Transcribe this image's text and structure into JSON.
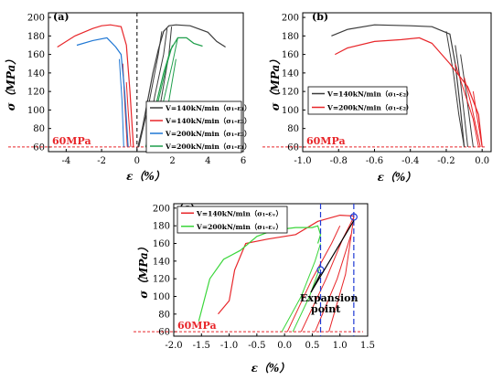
{
  "chart_data": [
    {
      "panel_label": "(a)",
      "type": "line",
      "xlabel": "ε（%）",
      "ylabel": "σ（MPa）",
      "xlim": [
        -5,
        6
      ],
      "ylim": [
        55,
        205
      ],
      "xticks": [
        -4,
        -2,
        0,
        2,
        4,
        6
      ],
      "yticks": [
        60,
        80,
        100,
        120,
        140,
        160,
        180,
        200
      ],
      "threshold": {
        "value": 60,
        "label": "60MPa",
        "color": "#e8262a"
      },
      "zero_line": true,
      "legend_position": "bottom-right",
      "series": [
        {
          "name": "V=140kN/min（σ₁-ε₁）",
          "color": "#3b3b3b",
          "points": [
            [
              0.05,
              60
            ],
            [
              0.3,
              80
            ],
            [
              0.6,
              110
            ],
            [
              0.9,
              140
            ],
            [
              1.2,
              165
            ],
            [
              1.5,
              185
            ],
            [
              1.8,
              191
            ],
            [
              2.2,
              192
            ],
            [
              3.0,
              191
            ],
            [
              4.0,
              184
            ],
            [
              4.5,
              174
            ],
            [
              5.0,
              168
            ]
          ],
          "loops": [
            [
              [
                0.1,
                60
              ],
              [
                0.7,
                110
              ],
              [
                1.2,
                160
              ],
              [
                1.4,
                185
              ]
            ],
            [
              [
                0.5,
                60
              ],
              [
                1.0,
                115
              ],
              [
                1.5,
                160
              ],
              [
                1.7,
                188
              ]
            ],
            [
              [
                0.9,
                60
              ],
              [
                1.4,
                115
              ],
              [
                1.8,
                160
              ],
              [
                1.95,
                190
              ]
            ]
          ]
        },
        {
          "name": "V=140kN/min（σ₁-ε₃）",
          "color": "#e8262a",
          "points": [
            [
              -4.5,
              168
            ],
            [
              -3.5,
              180
            ],
            [
              -2.5,
              188
            ],
            [
              -2.0,
              191
            ],
            [
              -1.5,
              192
            ],
            [
              -0.9,
              190
            ],
            [
              -0.6,
              170
            ],
            [
              -0.4,
              120
            ],
            [
              -0.2,
              60
            ]
          ],
          "loops": [
            [
              [
                -0.8,
                150
              ],
              [
                -0.7,
                110
              ],
              [
                -0.55,
                60
              ]
            ],
            [
              [
                -0.6,
                130
              ],
              [
                -0.5,
                100
              ],
              [
                -0.35,
                60
              ]
            ]
          ]
        },
        {
          "name": "V=200kN/min（σ₁-ε₃）",
          "color": "#1f77d4",
          "points": [
            [
              -3.4,
              170
            ],
            [
              -2.5,
              175
            ],
            [
              -1.7,
              178
            ],
            [
              -1.2,
              168
            ],
            [
              -0.9,
              160
            ],
            [
              -0.7,
              120
            ],
            [
              -0.5,
              60
            ]
          ],
          "loops": [
            [
              [
                -1.0,
                155
              ],
              [
                -0.85,
                110
              ],
              [
                -0.75,
                60
              ]
            ]
          ]
        },
        {
          "name": "V=200kN/min（σ₁-ε₁）",
          "color": "#1e9e4a",
          "points": [
            [
              0.5,
              60
            ],
            [
              1.0,
              100
            ],
            [
              1.5,
              140
            ],
            [
              1.9,
              165
            ],
            [
              2.3,
              178
            ],
            [
              2.8,
              178
            ],
            [
              3.2,
              172
            ],
            [
              3.7,
              169
            ]
          ],
          "loops": [
            [
              [
                0.7,
                60
              ],
              [
                1.2,
                110
              ],
              [
                1.7,
                150
              ],
              [
                2.0,
                170
              ]
            ],
            [
              [
                1.0,
                60
              ],
              [
                1.5,
                110
              ],
              [
                2.0,
                150
              ],
              [
                2.3,
                178
              ]
            ],
            [
              [
                1.3,
                60
              ],
              [
                1.8,
                110
              ],
              [
                2.2,
                155
              ]
            ]
          ]
        }
      ]
    },
    {
      "panel_label": "(b)",
      "type": "line",
      "xlabel": "ε（%）",
      "ylabel": "σ（MPa）",
      "xlim": [
        -1.0,
        0.05
      ],
      "ylim": [
        55,
        205
      ],
      "xticks": [
        -1.0,
        -0.8,
        -0.6,
        -0.4,
        -0.2,
        0.0
      ],
      "yticks": [
        60,
        80,
        100,
        120,
        140,
        160,
        180,
        200
      ],
      "threshold": {
        "value": 60,
        "label": "60MPa",
        "color": "#e8262a"
      },
      "legend_position": "middle-left",
      "series": [
        {
          "name": "V=140kN/min（σ₁-ε₂）",
          "color": "#3b3b3b",
          "points": [
            [
              -0.84,
              180
            ],
            [
              -0.75,
              187
            ],
            [
              -0.6,
              192
            ],
            [
              -0.4,
              191
            ],
            [
              -0.28,
              190
            ],
            [
              -0.18,
              182
            ],
            [
              -0.15,
              150
            ],
            [
              -0.12,
              100
            ],
            [
              -0.1,
              60
            ]
          ],
          "loops": [
            [
              [
                -0.2,
                185
              ],
              [
                -0.16,
                140
              ],
              [
                -0.13,
                95
              ],
              [
                -0.1,
                60
              ]
            ],
            [
              [
                -0.15,
                170
              ],
              [
                -0.12,
                130
              ],
              [
                -0.08,
                60
              ]
            ],
            [
              [
                -0.12,
                160
              ],
              [
                -0.09,
                120
              ],
              [
                -0.05,
                60
              ]
            ]
          ]
        },
        {
          "name": "V=200kN/min（σ₁-ε₂）",
          "color": "#e8262a",
          "points": [
            [
              -0.82,
              160
            ],
            [
              -0.75,
              167
            ],
            [
              -0.6,
              174
            ],
            [
              -0.45,
              176
            ],
            [
              -0.35,
              178
            ],
            [
              -0.28,
              172
            ],
            [
              -0.18,
              150
            ],
            [
              -0.08,
              125
            ],
            [
              -0.02,
              95
            ],
            [
              0.0,
              60
            ]
          ],
          "loops": [
            [
              [
                -0.15,
                150
              ],
              [
                -0.1,
                120
              ],
              [
                -0.05,
                90
              ],
              [
                -0.02,
                60
              ]
            ],
            [
              [
                -0.1,
                135
              ],
              [
                -0.06,
                105
              ],
              [
                -0.01,
                60
              ]
            ],
            [
              [
                -0.05,
                120
              ],
              [
                -0.03,
                95
              ],
              [
                0.0,
                60
              ]
            ]
          ]
        }
      ]
    },
    {
      "panel_label": "(c)",
      "type": "line",
      "xlabel": "ε（%）",
      "ylabel": "σ（MPa）",
      "xlim": [
        -2.0,
        1.5
      ],
      "ylim": [
        55,
        205
      ],
      "xticks": [
        -2.0,
        -1.5,
        -1.0,
        -0.5,
        0.0,
        0.5,
        1.0,
        1.5
      ],
      "yticks": [
        60,
        80,
        100,
        120,
        140,
        160,
        180,
        200
      ],
      "threshold": {
        "value": 60,
        "label": "60MPa",
        "color": "#e8262a"
      },
      "legend_position": "top-left",
      "series": [
        {
          "name": "V=140kN/min（σ₁-εᵥ）",
          "color": "#e8262a",
          "points": [
            [
              -1.2,
              80
            ],
            [
              -1.0,
              95
            ],
            [
              -0.9,
              130
            ],
            [
              -0.7,
              160
            ],
            [
              -0.3,
              165
            ],
            [
              0.2,
              170
            ],
            [
              0.6,
              185
            ],
            [
              1.0,
              192
            ],
            [
              1.25,
              191
            ]
          ],
          "loops": [
            [
              [
                0.05,
                60
              ],
              [
                0.5,
                120
              ],
              [
                0.85,
                160
              ],
              [
                1.0,
                180
              ]
            ],
            [
              [
                0.3,
                60
              ],
              [
                0.75,
                120
              ],
              [
                1.05,
                165
              ],
              [
                1.25,
                190
              ]
            ],
            [
              [
                0.55,
                60
              ],
              [
                0.95,
                120
              ],
              [
                1.2,
                170
              ]
            ],
            [
              [
                0.8,
                60
              ],
              [
                1.1,
                125
              ],
              [
                1.25,
                190
              ]
            ]
          ]
        },
        {
          "name": "V=200kN/min（σ₁-εᵥ）",
          "color": "#3ad63a",
          "points": [
            [
              -1.55,
              72
            ],
            [
              -1.35,
              120
            ],
            [
              -1.1,
              142
            ],
            [
              -0.8,
              152
            ],
            [
              -0.5,
              168
            ],
            [
              -0.2,
              175
            ],
            [
              0.2,
              178
            ],
            [
              0.5,
              178
            ],
            [
              0.6,
              180
            ],
            [
              0.65,
              170
            ],
            [
              0.6,
              160
            ]
          ],
          "loops": [
            [
              [
                -0.05,
                60
              ],
              [
                0.3,
                100
              ],
              [
                0.55,
                140
              ],
              [
                0.65,
                160
              ]
            ],
            [
              [
                0.15,
                60
              ],
              [
                0.45,
                100
              ],
              [
                0.65,
                135
              ]
            ]
          ]
        }
      ],
      "vlines": [
        0.65,
        1.25
      ],
      "expansion_points": [
        [
          0.65,
          130
        ],
        [
          1.25,
          190
        ]
      ],
      "annotation": {
        "text_line1": "Expansion",
        "text_line2": "point"
      }
    }
  ]
}
